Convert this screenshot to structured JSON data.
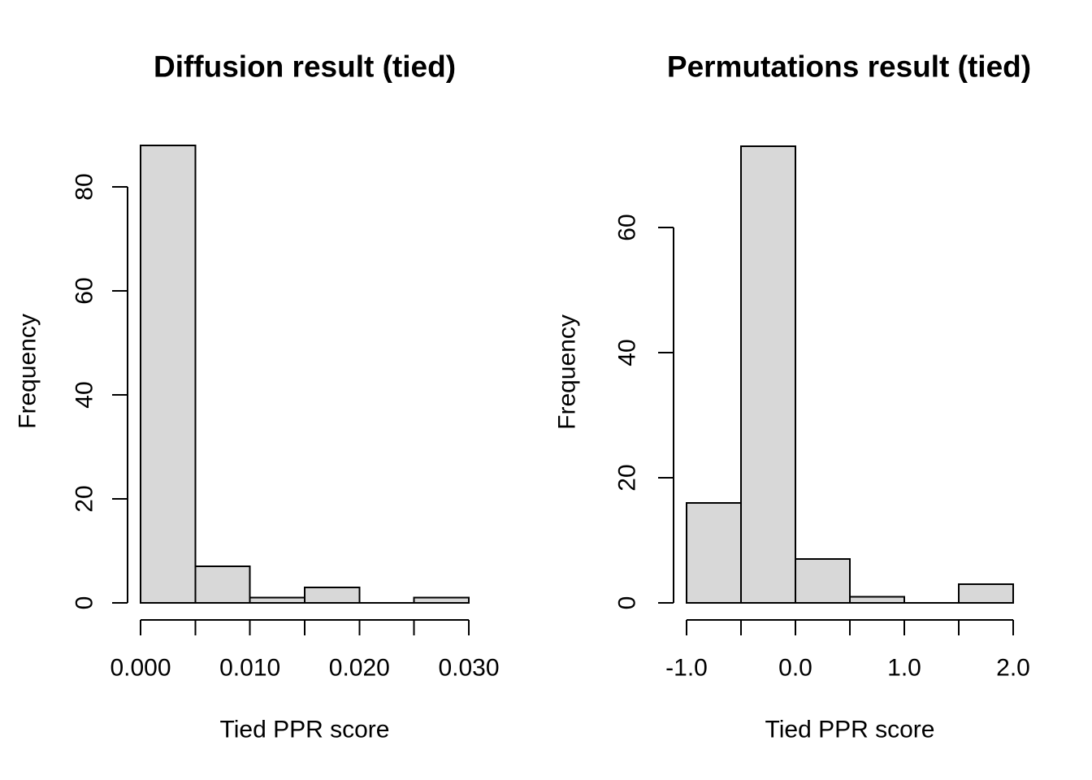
{
  "figure": {
    "kind": "R base graphics histogram pair",
    "background": "#ffffff",
    "style": {
      "bar_fill": "#d8d8d8",
      "bar_stroke": "#000000",
      "axis_color": "#000000",
      "text_color": "#000000"
    }
  },
  "chart_data": [
    {
      "type": "bar",
      "variant": "histogram",
      "title": "Diffusion result (tied)",
      "xlabel": "Tied PPR score",
      "ylabel": "Frequency",
      "bin_breaks": [
        0.0,
        0.005,
        0.01,
        0.015,
        0.02,
        0.025,
        0.03
      ],
      "counts": [
        88,
        7,
        1,
        3,
        0,
        1
      ],
      "xlim": [
        0.0,
        0.03
      ],
      "ylim": [
        0,
        80
      ],
      "x_ticks": [
        {
          "v": 0.0,
          "label": "0.000"
        },
        {
          "v": 0.005,
          "label": ""
        },
        {
          "v": 0.01,
          "label": "0.010"
        },
        {
          "v": 0.015,
          "label": ""
        },
        {
          "v": 0.02,
          "label": "0.020"
        },
        {
          "v": 0.025,
          "label": ""
        },
        {
          "v": 0.03,
          "label": "0.030"
        }
      ],
      "y_ticks": [
        {
          "v": 0,
          "label": "0"
        },
        {
          "v": 20,
          "label": "20"
        },
        {
          "v": 40,
          "label": "40"
        },
        {
          "v": 60,
          "label": "60"
        },
        {
          "v": 80,
          "label": "80"
        }
      ],
      "grid": false,
      "legend": null
    },
    {
      "type": "bar",
      "variant": "histogram",
      "title": "Permutations result (tied)",
      "xlabel": "Tied PPR score",
      "ylabel": "Frequency",
      "bin_breaks": [
        -1.0,
        -0.5,
        0.0,
        0.5,
        1.0,
        1.5,
        2.0
      ],
      "counts": [
        16,
        73,
        7,
        1,
        0,
        3
      ],
      "xlim": [
        -1.0,
        2.0
      ],
      "ylim": [
        0,
        60
      ],
      "x_ticks": [
        {
          "v": -1.0,
          "label": "-1.0"
        },
        {
          "v": -0.5,
          "label": ""
        },
        {
          "v": 0.0,
          "label": "0.0"
        },
        {
          "v": 0.5,
          "label": ""
        },
        {
          "v": 1.0,
          "label": "1.0"
        },
        {
          "v": 1.5,
          "label": ""
        },
        {
          "v": 2.0,
          "label": "2.0"
        }
      ],
      "y_ticks": [
        {
          "v": 0,
          "label": "0"
        },
        {
          "v": 20,
          "label": "20"
        },
        {
          "v": 40,
          "label": "40"
        },
        {
          "v": 60,
          "label": "60"
        }
      ],
      "grid": false,
      "legend": null
    }
  ]
}
